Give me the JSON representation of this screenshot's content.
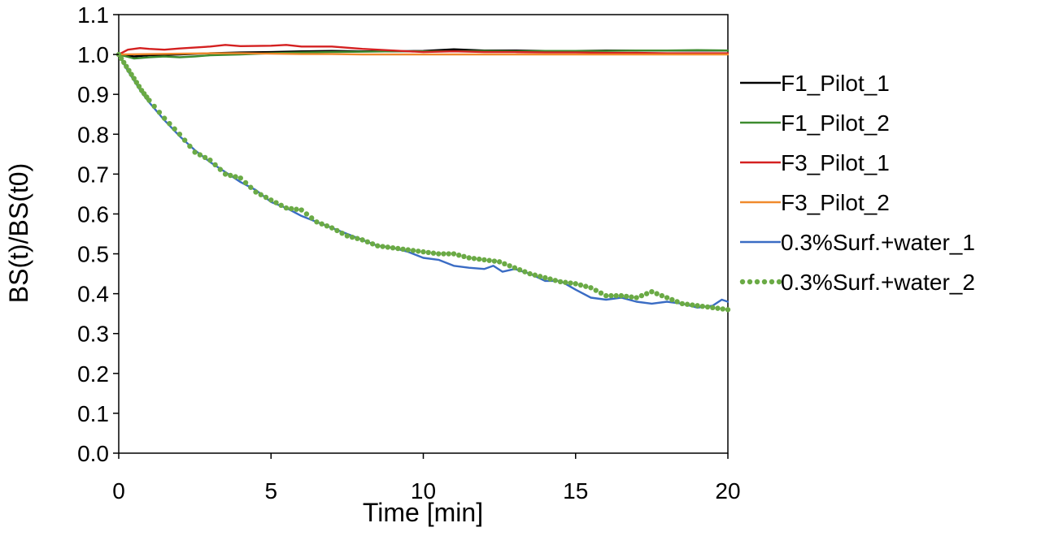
{
  "chart_data": {
    "type": "line",
    "title": "",
    "xlabel": "Time [min]",
    "ylabel": "BS(t)/BS(t0)",
    "xlim": [
      0,
      20
    ],
    "ylim": [
      0.0,
      1.1
    ],
    "xticks": [
      0,
      5,
      10,
      15,
      20
    ],
    "xtick_labels": [
      "0",
      "5",
      "10",
      "15",
      "20"
    ],
    "yticks": [
      0.0,
      0.1,
      0.2,
      0.3,
      0.4,
      0.5,
      0.6,
      0.7,
      0.8,
      0.9,
      1.0,
      1.1
    ],
    "ytick_labels": [
      "0.0",
      "0.1",
      "0.2",
      "0.3",
      "0.4",
      "0.5",
      "0.6",
      "0.7",
      "0.8",
      "0.9",
      "1.0",
      "1.1"
    ],
    "grid": false,
    "legend_position": "right",
    "series": [
      {
        "name": "F1_Pilot_1",
        "color": "#000000",
        "style": "solid",
        "x": [
          0,
          0.5,
          1,
          2,
          3,
          4,
          5,
          6,
          7,
          8,
          9,
          10,
          11,
          12,
          13,
          14,
          15,
          16,
          17,
          18,
          19,
          20
        ],
        "y": [
          1.0,
          0.995,
          0.998,
          1.0,
          1.003,
          1.005,
          1.006,
          1.008,
          1.009,
          1.008,
          1.008,
          1.009,
          1.013,
          1.01,
          1.01,
          1.009,
          1.009,
          1.01,
          1.01,
          1.01,
          1.01,
          1.01
        ]
      },
      {
        "name": "F1_Pilot_2",
        "color": "#3d8b2f",
        "style": "solid",
        "x": [
          0,
          0.5,
          1,
          1.5,
          2,
          2.5,
          3,
          4,
          5,
          6,
          7,
          8,
          9,
          10,
          11,
          12,
          13,
          14,
          15,
          16,
          17,
          18,
          19,
          20
        ],
        "y": [
          1.0,
          0.99,
          0.993,
          0.995,
          0.993,
          0.995,
          0.998,
          1.0,
          1.003,
          1.005,
          1.006,
          1.007,
          1.008,
          1.008,
          1.008,
          1.009,
          1.008,
          1.009,
          1.009,
          1.009,
          1.01,
          1.01,
          1.011,
          1.01
        ]
      },
      {
        "name": "F3_Pilot_1",
        "color": "#d42020",
        "style": "solid",
        "x": [
          0,
          0.3,
          0.7,
          1,
          1.5,
          2,
          3,
          3.5,
          4,
          5,
          5.5,
          6,
          7,
          8,
          9,
          10,
          11,
          12,
          13,
          14,
          15,
          16,
          17,
          18,
          19,
          20
        ],
        "y": [
          1.0,
          1.012,
          1.016,
          1.014,
          1.012,
          1.015,
          1.02,
          1.024,
          1.021,
          1.022,
          1.024,
          1.02,
          1.02,
          1.014,
          1.01,
          1.006,
          1.008,
          1.006,
          1.006,
          1.005,
          1.005,
          1.004,
          1.004,
          1.003,
          1.003,
          1.003
        ]
      },
      {
        "name": "F3_Pilot_2",
        "color": "#f08a2c",
        "style": "solid",
        "x": [
          0,
          1,
          2,
          3,
          4,
          5,
          6,
          7,
          8,
          9,
          10,
          11,
          12,
          13,
          14,
          15,
          16,
          17,
          18,
          19,
          20
        ],
        "y": [
          1.0,
          1.001,
          1.002,
          1.003,
          1.003,
          1.002,
          1.001,
          1.001,
          1.0,
          1.0,
          1.0,
          1.0,
          1.0,
          1.0,
          1.0,
          1.0,
          1.0,
          1.0,
          1.0,
          1.0,
          1.0
        ]
      },
      {
        "name": "0.3%Surf.+water_1",
        "color": "#3a6cc4",
        "style": "solid",
        "x": [
          0,
          0.25,
          0.5,
          0.75,
          1,
          1.5,
          2,
          2.5,
          3,
          3.5,
          4,
          4.5,
          5,
          5.5,
          6,
          6.5,
          7,
          7.5,
          8,
          8.5,
          9,
          9.5,
          10,
          10.5,
          11,
          11.5,
          12,
          12.3,
          12.6,
          13,
          13.5,
          14,
          14.5,
          15,
          15.5,
          16,
          16.5,
          17,
          17.5,
          18,
          18.5,
          19,
          19.5,
          19.8,
          20
        ],
        "y": [
          1.0,
          0.965,
          0.935,
          0.905,
          0.88,
          0.835,
          0.795,
          0.76,
          0.73,
          0.705,
          0.68,
          0.66,
          0.63,
          0.615,
          0.595,
          0.58,
          0.565,
          0.55,
          0.535,
          0.52,
          0.515,
          0.505,
          0.49,
          0.485,
          0.47,
          0.465,
          0.462,
          0.47,
          0.455,
          0.462,
          0.45,
          0.432,
          0.432,
          0.41,
          0.39,
          0.385,
          0.39,
          0.38,
          0.375,
          0.38,
          0.375,
          0.365,
          0.37,
          0.385,
          0.38
        ]
      },
      {
        "name": "0.3%Surf.+water_2",
        "color": "#6aaa45",
        "style": "dotted",
        "x": [
          0,
          0.25,
          0.5,
          0.75,
          1,
          1.5,
          2,
          2.5,
          3,
          3.5,
          4,
          4.5,
          5,
          5.5,
          6,
          6.5,
          7,
          7.5,
          8,
          8.5,
          9,
          9.5,
          10,
          10.5,
          11,
          11.5,
          12,
          12.5,
          13,
          13.5,
          14,
          14.5,
          15,
          15.5,
          16,
          16.5,
          17,
          17.5,
          18,
          18.5,
          19,
          19.5,
          20
        ],
        "y": [
          1.0,
          0.97,
          0.94,
          0.91,
          0.885,
          0.84,
          0.8,
          0.755,
          0.735,
          0.7,
          0.69,
          0.655,
          0.635,
          0.615,
          0.61,
          0.58,
          0.565,
          0.545,
          0.535,
          0.52,
          0.515,
          0.51,
          0.505,
          0.5,
          0.5,
          0.49,
          0.485,
          0.48,
          0.465,
          0.45,
          0.44,
          0.43,
          0.425,
          0.415,
          0.395,
          0.395,
          0.39,
          0.405,
          0.39,
          0.375,
          0.37,
          0.365,
          0.36
        ]
      }
    ]
  }
}
